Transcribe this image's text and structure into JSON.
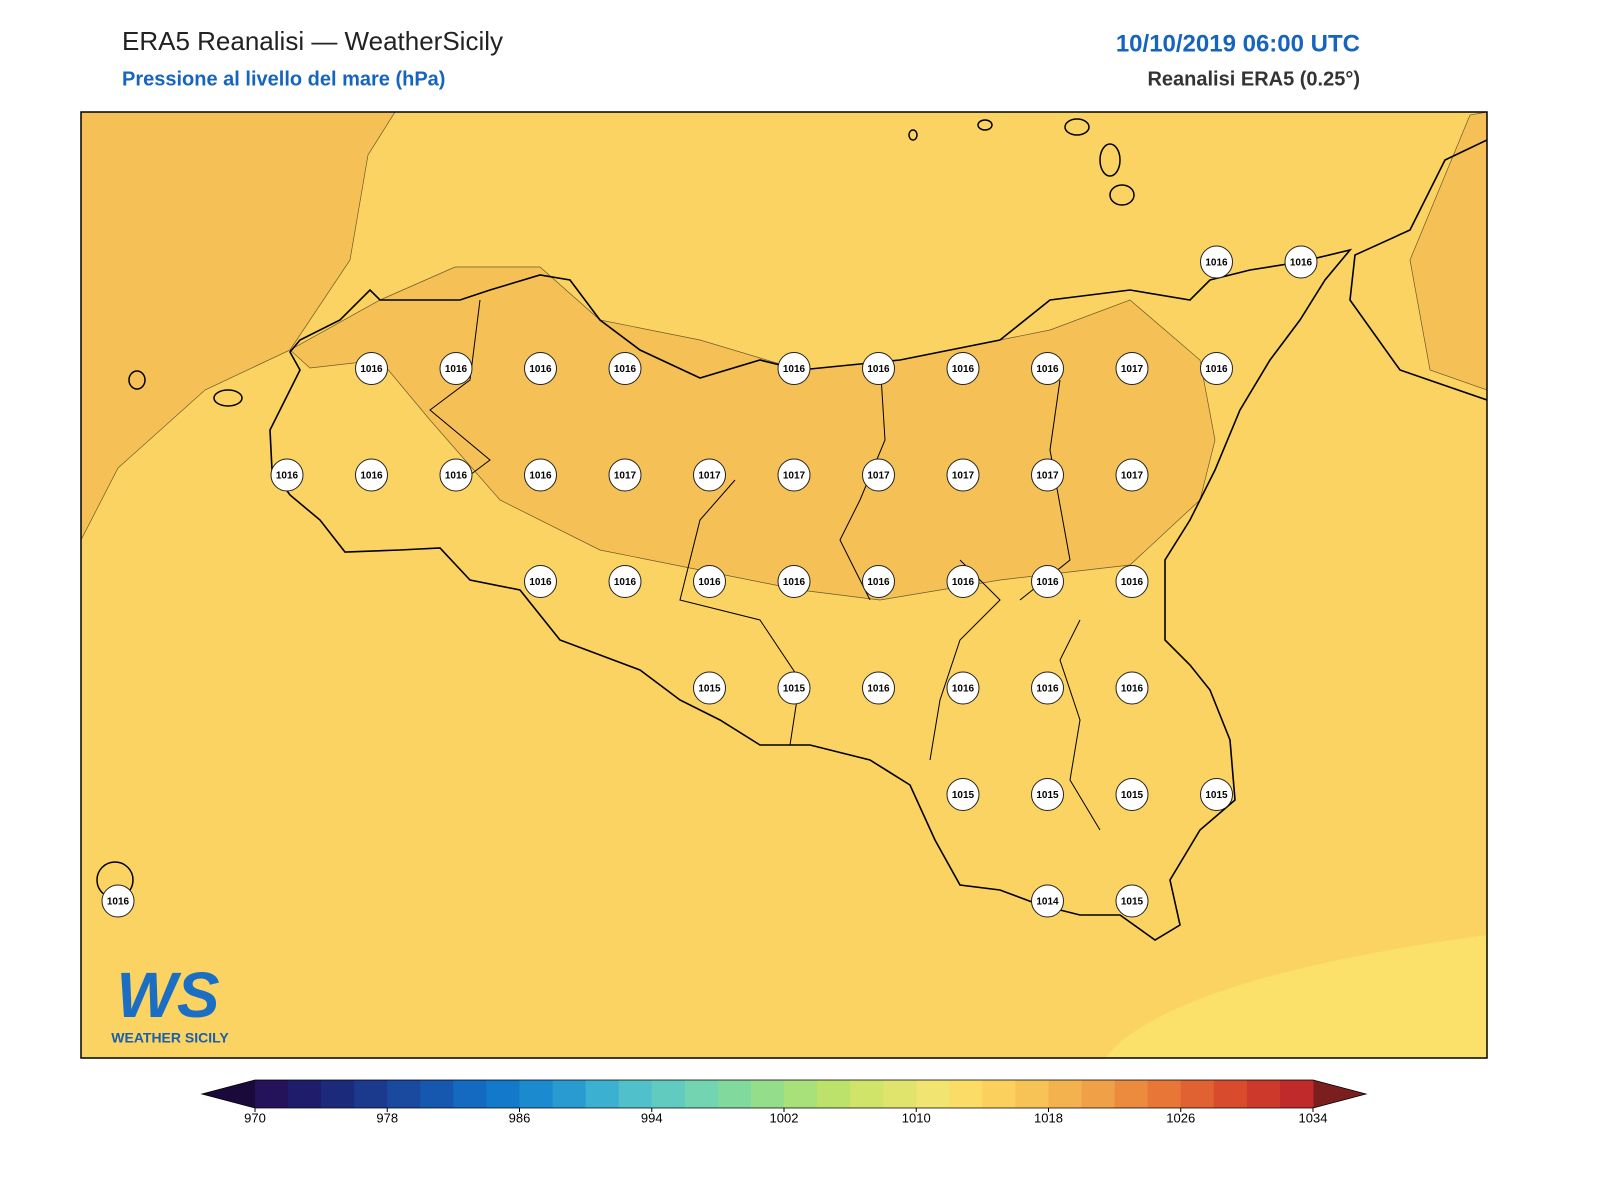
{
  "header": {
    "title": "ERA5 Reanalisi — WeatherSicily",
    "subtitle": "Pressione al livello del mare (hPa)",
    "datetime": "10/10/2019 06:00 UTC",
    "source": "Reanalisi ERA5 (0.25°)"
  },
  "pressure_grid": [
    [
      null,
      null,
      null,
      null,
      null,
      null,
      null,
      null,
      null,
      null,
      null,
      null,
      null,
      1016,
      1016
    ],
    [
      null,
      null,
      null,
      1016,
      1016,
      1016,
      1016,
      null,
      1016,
      1016,
      1016,
      1016,
      1017,
      1016,
      null
    ],
    [
      null,
      null,
      1016,
      1016,
      1016,
      1016,
      1017,
      1017,
      1017,
      1017,
      1017,
      1017,
      1017,
      null,
      null
    ],
    [
      null,
      null,
      null,
      null,
      null,
      1016,
      1016,
      1016,
      1016,
      1016,
      1016,
      1016,
      1016,
      null,
      null
    ],
    [
      null,
      null,
      null,
      null,
      null,
      null,
      null,
      1015,
      1015,
      1016,
      1016,
      1016,
      1016,
      null,
      null
    ],
    [
      null,
      null,
      null,
      null,
      null,
      null,
      null,
      null,
      null,
      null,
      1015,
      1015,
      1015,
      1015,
      null
    ],
    [
      1016,
      null,
      null,
      null,
      null,
      null,
      null,
      null,
      null,
      null,
      null,
      1014,
      1015,
      null,
      null
    ]
  ],
  "colorbar": {
    "lim": [
      970,
      1034
    ],
    "ticks": [
      970,
      978,
      986,
      994,
      1002,
      1010,
      1018,
      1026,
      1034
    ],
    "colors": [
      "#24135a",
      "#1f1d6b",
      "#1c2a7c",
      "#1b3a8e",
      "#1a4a9f",
      "#1658b0",
      "#136ac0",
      "#1279cb",
      "#1b8acf",
      "#2a9bd1",
      "#3cb0d1",
      "#50c0cb",
      "#62cbbf",
      "#72d4b0",
      "#82d99e",
      "#94dd8b",
      "#a8e07a",
      "#bde26c",
      "#d0e46a",
      "#e0e46c",
      "#f1e470",
      "#fbdc66",
      "#fbd05c",
      "#f8c356",
      "#f3b24e",
      "#f0a047",
      "#ec8b3e",
      "#e77637",
      "#e06131",
      "#d84c2d",
      "#cd3a2b",
      "#c12a2a"
    ],
    "under": "#1a0a3c",
    "over": "#7a1e1e"
  },
  "logo": {
    "mark": "WS",
    "text": "WEATHER SICILY"
  }
}
